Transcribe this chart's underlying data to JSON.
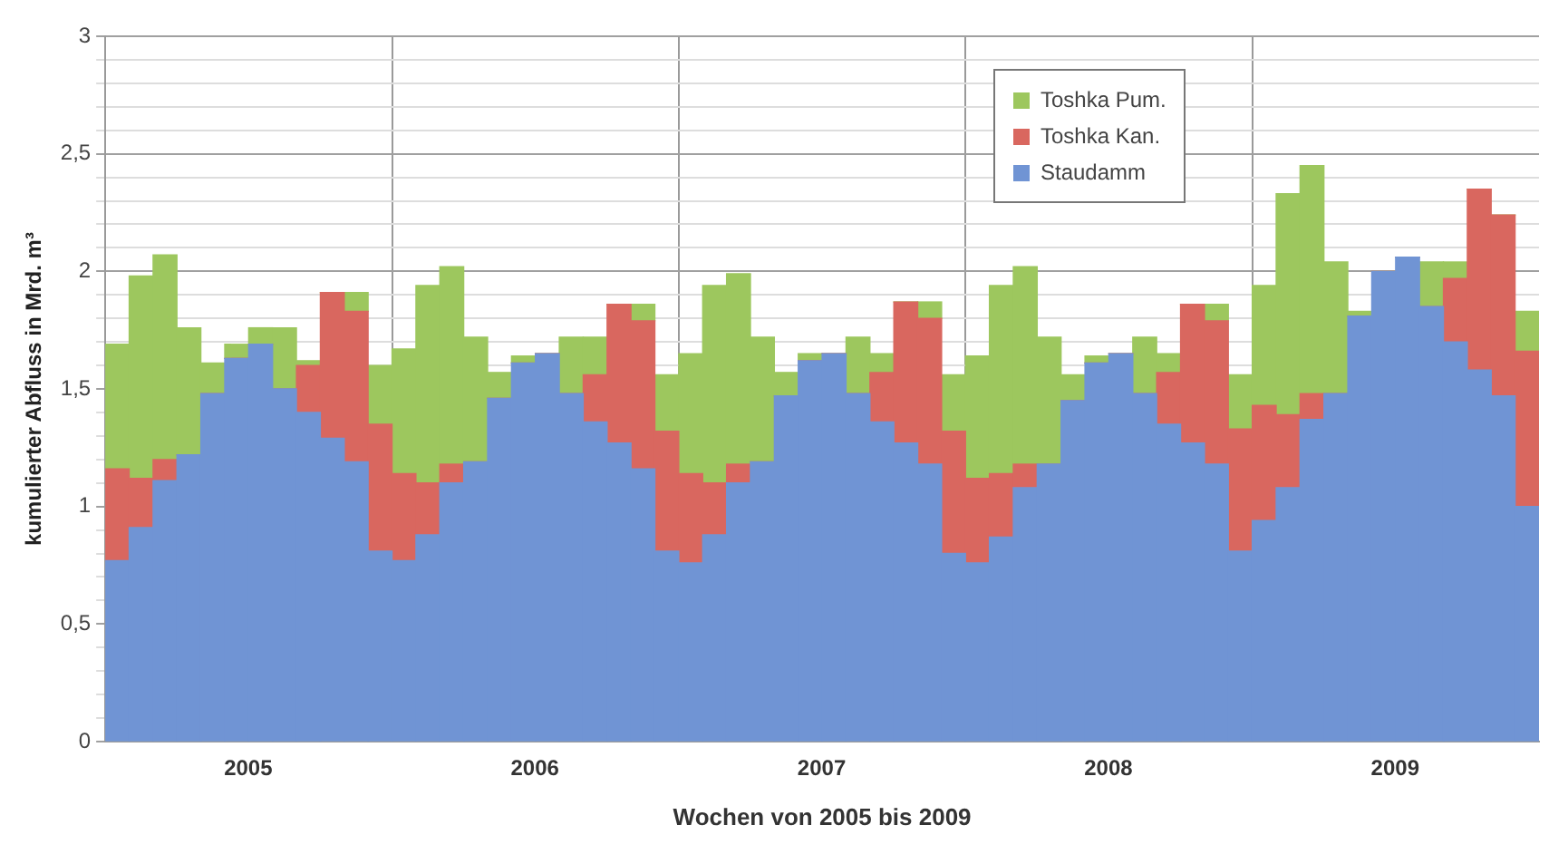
{
  "chart_data": {
    "type": "bar",
    "stacked": true,
    "xlabel": "Wochen von 2005 bis 2009",
    "ylabel": "kumulierter Abfluss in Mrd. m³",
    "categories": [
      null,
      null,
      null,
      null,
      null,
      "2005",
      null,
      null,
      null,
      null,
      null,
      null,
      null,
      null,
      null,
      null,
      null,
      "2006",
      null,
      null,
      null,
      null,
      null,
      null,
      null,
      null,
      null,
      null,
      null,
      "2007",
      null,
      null,
      null,
      null,
      null,
      null,
      null,
      null,
      null,
      null,
      null,
      "2008",
      null,
      null,
      null,
      null,
      null,
      null,
      null,
      null,
      null,
      null,
      null,
      "2009",
      null,
      null,
      null,
      null,
      null,
      null
    ],
    "series": [
      {
        "name": "Staudamm",
        "color": "#7094d4",
        "values": [
          0.77,
          0.91,
          1.11,
          1.22,
          1.48,
          1.63,
          1.69,
          1.5,
          1.4,
          1.29,
          1.19,
          0.81,
          0.77,
          0.88,
          1.1,
          1.19,
          1.46,
          1.61,
          1.65,
          1.48,
          1.36,
          1.27,
          1.16,
          0.81,
          0.76,
          0.88,
          1.1,
          1.19,
          1.47,
          1.62,
          1.65,
          1.48,
          1.36,
          1.27,
          1.18,
          0.8,
          0.76,
          0.87,
          1.08,
          1.18,
          1.45,
          1.61,
          1.65,
          1.48,
          1.35,
          1.27,
          1.18,
          0.81,
          0.94,
          1.08,
          1.37,
          1.48,
          1.81,
          2.0,
          2.06,
          1.85,
          1.7,
          1.58,
          1.47,
          1.0
        ]
      },
      {
        "name": "Toshka Kan.",
        "color": "#d9675f",
        "values": [
          0.39,
          0.21,
          0.09,
          0,
          0,
          0,
          0,
          0,
          0.2,
          0.62,
          0.64,
          0.54,
          0.37,
          0.22,
          0.08,
          0,
          0,
          0,
          0,
          0,
          0.2,
          0.59,
          0.63,
          0.51,
          0.38,
          0.22,
          0.08,
          0,
          0,
          0,
          0,
          0,
          0.21,
          0.6,
          0.62,
          0.52,
          0.36,
          0.27,
          0.1,
          0,
          0,
          0,
          0,
          0,
          0.22,
          0.59,
          0.61,
          0.52,
          0.49,
          0.31,
          0.11,
          0,
          0,
          0,
          0,
          0,
          0.27,
          0.77,
          0.77,
          0.66
        ]
      },
      {
        "name": "Toshka Pum.",
        "color": "#9dc75e",
        "values": [
          0.53,
          0.86,
          0.87,
          0.54,
          0.13,
          0.06,
          0.07,
          0.26,
          0.02,
          0,
          0.08,
          0.25,
          0.53,
          0.84,
          0.84,
          0.53,
          0.11,
          0.03,
          0,
          0.24,
          0.16,
          0,
          0.07,
          0.24,
          0.51,
          0.84,
          0.81,
          0.53,
          0.1,
          0.03,
          0,
          0.24,
          0.08,
          0,
          0.07,
          0.24,
          0.52,
          0.8,
          0.84,
          0.54,
          0.11,
          0.03,
          0,
          0.24,
          0.08,
          0,
          0.07,
          0.23,
          0.51,
          0.94,
          0.97,
          0.56,
          0.02,
          0,
          0,
          0.19,
          0.07,
          0,
          0,
          0.17
        ]
      }
    ],
    "ylim": [
      0,
      3
    ],
    "yticks": [
      0,
      {
        "value": 0.1,
        "label": null
      },
      {
        "value": 0.2,
        "label": null
      },
      {
        "value": 0.3,
        "label": null
      },
      {
        "value": 0.4,
        "label": null
      },
      {
        "value": 0.5,
        "label": "0,5"
      },
      {
        "value": 0.6,
        "label": null
      },
      {
        "value": 0.7,
        "label": null
      },
      {
        "value": 0.8,
        "label": null
      },
      {
        "value": 0.9,
        "label": null
      },
      1,
      {
        "value": 1.1,
        "label": null
      },
      {
        "value": 1.2,
        "label": null
      },
      {
        "value": 1.3,
        "label": null
      },
      {
        "value": 1.4,
        "label": null
      },
      {
        "value": 1.5,
        "label": "1,5"
      },
      {
        "value": 1.6,
        "label": null
      },
      {
        "value": 1.7,
        "label": null
      },
      {
        "value": 1.8,
        "label": null
      },
      {
        "value": 1.9,
        "label": null
      },
      2,
      {
        "value": 2.1,
        "label": null
      },
      {
        "value": 2.2,
        "label": null
      },
      {
        "value": 2.3,
        "label": null
      },
      {
        "value": 2.4,
        "label": null
      },
      {
        "value": 2.5,
        "label": "2,5"
      },
      {
        "value": 2.6,
        "label": null
      },
      {
        "value": 2.7,
        "label": null
      },
      {
        "value": 2.8,
        "label": null
      },
      {
        "value": 2.9,
        "label": null
      },
      3
    ],
    "grid": true,
    "legend": "top right"
  }
}
